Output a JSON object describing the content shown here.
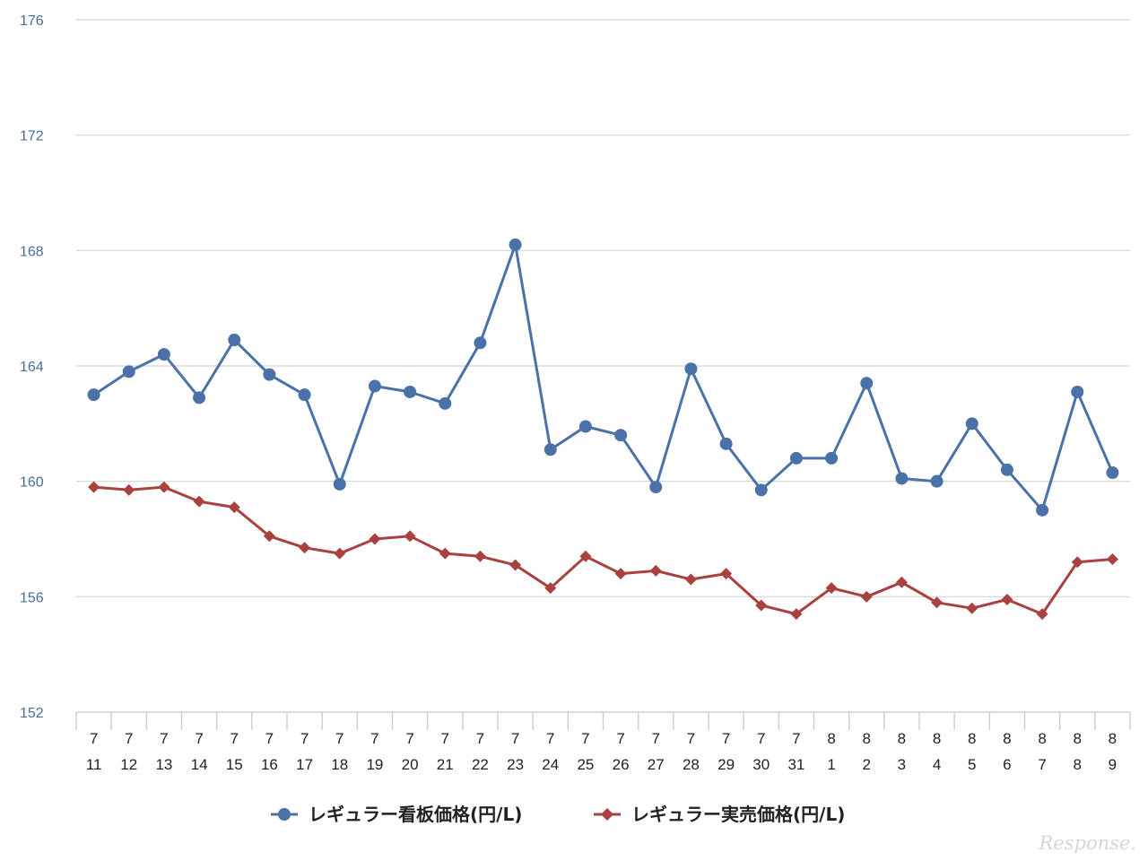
{
  "chart_data": {
    "type": "line",
    "title": "",
    "xlabel": "",
    "ylabel": "",
    "ylim": [
      152,
      176
    ],
    "yticks": [
      "152",
      "156",
      "160",
      "164",
      "168",
      "172",
      "176"
    ],
    "grid": true,
    "legend_position": "bottom-center",
    "categories": [
      {
        "month": "7",
        "day": "11"
      },
      {
        "month": "7",
        "day": "12"
      },
      {
        "month": "7",
        "day": "13"
      },
      {
        "month": "7",
        "day": "14"
      },
      {
        "month": "7",
        "day": "15"
      },
      {
        "month": "7",
        "day": "16"
      },
      {
        "month": "7",
        "day": "17"
      },
      {
        "month": "7",
        "day": "18"
      },
      {
        "month": "7",
        "day": "19"
      },
      {
        "month": "7",
        "day": "20"
      },
      {
        "month": "7",
        "day": "21"
      },
      {
        "month": "7",
        "day": "22"
      },
      {
        "month": "7",
        "day": "23"
      },
      {
        "month": "7",
        "day": "24"
      },
      {
        "month": "7",
        "day": "25"
      },
      {
        "month": "7",
        "day": "26"
      },
      {
        "month": "7",
        "day": "27"
      },
      {
        "month": "7",
        "day": "28"
      },
      {
        "month": "7",
        "day": "29"
      },
      {
        "month": "7",
        "day": "30"
      },
      {
        "month": "7",
        "day": "31"
      },
      {
        "month": "8",
        "day": "1"
      },
      {
        "month": "8",
        "day": "2"
      },
      {
        "month": "8",
        "day": "3"
      },
      {
        "month": "8",
        "day": "4"
      },
      {
        "month": "8",
        "day": "5"
      },
      {
        "month": "8",
        "day": "6"
      },
      {
        "month": "8",
        "day": "7"
      },
      {
        "month": "8",
        "day": "8"
      },
      {
        "month": "8",
        "day": "9"
      }
    ],
    "series": [
      {
        "name": "レギュラー看板価格(円/L)",
        "color": "#4a72a8",
        "marker": "circle",
        "values": [
          163.0,
          163.8,
          164.4,
          162.9,
          164.9,
          163.7,
          163.0,
          159.9,
          163.3,
          163.1,
          162.7,
          164.8,
          168.2,
          161.1,
          161.9,
          161.6,
          159.8,
          163.9,
          161.3,
          159.7,
          160.8,
          160.8,
          163.4,
          160.1,
          160.0,
          162.0,
          160.4,
          159.0,
          163.1,
          160.3
        ]
      },
      {
        "name": "レギュラー実売価格(円/L)",
        "color": "#a8413f",
        "marker": "diamond",
        "values": [
          159.8,
          159.7,
          159.8,
          159.3,
          159.1,
          158.1,
          157.7,
          157.5,
          158.0,
          158.1,
          157.5,
          157.4,
          157.1,
          156.3,
          157.4,
          156.8,
          156.9,
          156.6,
          156.8,
          155.7,
          155.4,
          156.3,
          156.0,
          156.5,
          155.8,
          155.6,
          155.9,
          155.4,
          157.2,
          157.3
        ]
      }
    ]
  },
  "watermark": "Response."
}
